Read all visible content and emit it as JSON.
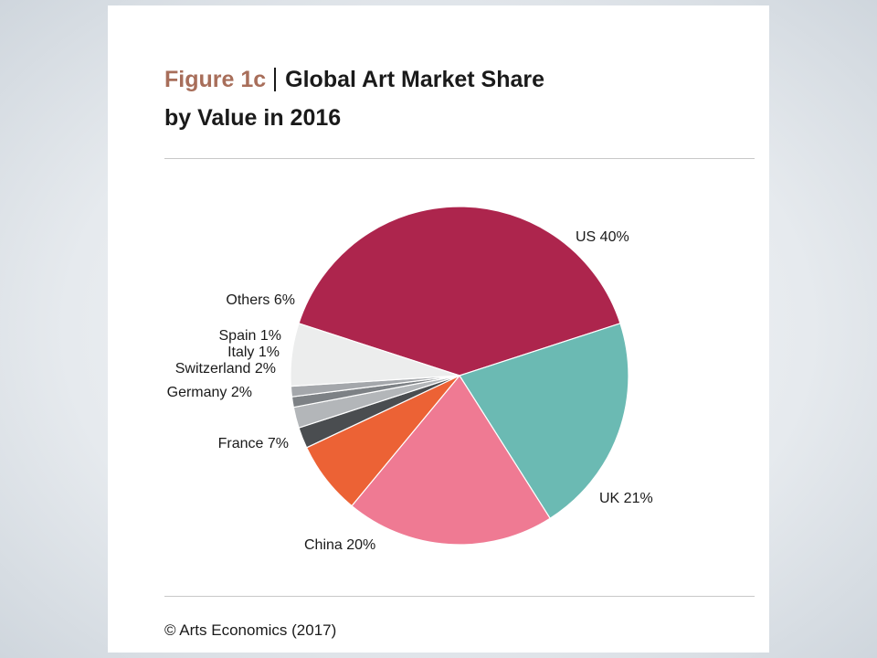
{
  "figure": {
    "label": "Figure 1c",
    "title_line1": "Global Art Market Share",
    "title_line2": "by Value in 2016",
    "source": "© Arts Economics (2017)"
  },
  "chart_data": {
    "type": "pie",
    "title": "Global Art Market Share by Value in 2016",
    "slices": [
      {
        "name": "US",
        "value": 40,
        "label": "US 40%",
        "color": "#ad254d"
      },
      {
        "name": "UK",
        "value": 21,
        "label": "UK 21%",
        "color": "#6bbab3"
      },
      {
        "name": "China",
        "value": 20,
        "label": "China 20%",
        "color": "#ef7a93"
      },
      {
        "name": "France",
        "value": 7,
        "label": "France 7%",
        "color": "#ec6235"
      },
      {
        "name": "Germany",
        "value": 2,
        "label": "Germany 2%",
        "color": "#4a4d50"
      },
      {
        "name": "Switzerland",
        "value": 2,
        "label": "Switzerland 2%",
        "color": "#b3b6b9"
      },
      {
        "name": "Italy",
        "value": 1,
        "label": "Italy 1%",
        "color": "#7d8185"
      },
      {
        "name": "Spain",
        "value": 1,
        "label": "Spain 1%",
        "color": "#a4a7ab"
      },
      {
        "name": "Others",
        "value": 6,
        "label": "Others 6%",
        "color": "#eceded"
      }
    ]
  }
}
